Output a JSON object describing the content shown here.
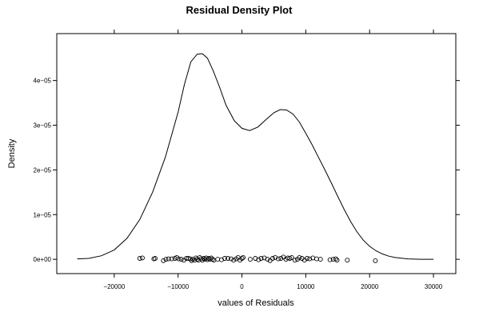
{
  "chart_data": {
    "type": "line",
    "title": "Residual Density Plot",
    "xlabel": "values of Residuals",
    "ylabel": "Density",
    "xlim": [
      -29000,
      33500
    ],
    "ylim": [
      -3.2e-06,
      5.05e-05
    ],
    "x_ticks": [
      {
        "value": -20000,
        "label": "−20000"
      },
      {
        "value": -10000,
        "label": "−10000"
      },
      {
        "value": 0,
        "label": "0"
      },
      {
        "value": 10000,
        "label": "10000"
      },
      {
        "value": 20000,
        "label": "20000"
      },
      {
        "value": 30000,
        "label": "30000"
      }
    ],
    "y_ticks": [
      {
        "value": 0,
        "label": "0e+00"
      },
      {
        "value": 1e-05,
        "label": "1e−05"
      },
      {
        "value": 2e-05,
        "label": "2e−05"
      },
      {
        "value": 3e-05,
        "label": "3e−05"
      },
      {
        "value": 4e-05,
        "label": "4e−05"
      }
    ],
    "grid": false,
    "series": [
      {
        "values": [
          [
            -25800,
            1e-07
          ],
          [
            -24000,
            2e-07
          ],
          [
            -22000,
            8e-07
          ],
          [
            -20000,
            2.1e-06
          ],
          [
            -18000,
            4.7e-06
          ],
          [
            -16000,
            8.9e-06
          ],
          [
            -14000,
            1.5e-05
          ],
          [
            -12000,
            2.28e-05
          ],
          [
            -10000,
            3.29e-05
          ],
          [
            -9000,
            3.92e-05
          ],
          [
            -8000,
            4.42e-05
          ],
          [
            -7000,
            4.59e-05
          ],
          [
            -6200,
            4.6e-05
          ],
          [
            -5400,
            4.5e-05
          ],
          [
            -4500,
            4.22e-05
          ],
          [
            -3500,
            3.85e-05
          ],
          [
            -2500,
            3.45e-05
          ],
          [
            -1200,
            3.1e-05
          ],
          [
            0,
            2.93e-05
          ],
          [
            1200,
            2.88e-05
          ],
          [
            2500,
            2.96e-05
          ],
          [
            3800,
            3.13e-05
          ],
          [
            5000,
            3.28e-05
          ],
          [
            6000,
            3.35e-05
          ],
          [
            7000,
            3.34e-05
          ],
          [
            8000,
            3.25e-05
          ],
          [
            9000,
            3.07e-05
          ],
          [
            10000,
            2.82e-05
          ],
          [
            11000,
            2.56e-05
          ],
          [
            12000,
            2.28e-05
          ],
          [
            13000,
            2e-05
          ],
          [
            14000,
            1.71e-05
          ],
          [
            15000,
            1.41e-05
          ],
          [
            16000,
            1.12e-05
          ],
          [
            17000,
            8.5e-06
          ],
          [
            18000,
            6.2e-06
          ],
          [
            19000,
            4.3e-06
          ],
          [
            20000,
            2.9e-06
          ],
          [
            21000,
            1.9e-06
          ],
          [
            22000,
            1.2e-06
          ],
          [
            23000,
            7e-07
          ],
          [
            24000,
            4e-07
          ],
          [
            26000,
            1e-07
          ],
          [
            28000,
            0.0
          ],
          [
            30000,
            0.0
          ]
        ]
      }
    ],
    "rug": [
      [
        -16000,
        2e-07
      ],
      [
        -15600,
        3e-07
      ],
      [
        -13800,
        1e-07
      ],
      [
        -13600,
        2e-07
      ],
      [
        -12300,
        -3e-07
      ],
      [
        -11900,
        0.0
      ],
      [
        -11500,
        1e-07
      ],
      [
        -11000,
        1e-07
      ],
      [
        -10500,
        2e-07
      ],
      [
        -10200,
        4e-07
      ],
      [
        -9900,
        1e-07
      ],
      [
        -9500,
        0.0
      ],
      [
        -9100,
        -2e-07
      ],
      [
        -8700,
        2e-07
      ],
      [
        -8400,
        2e-07
      ],
      [
        -8100,
        1e-07
      ],
      [
        -7900,
        -3e-07
      ],
      [
        -7700,
        0.0
      ],
      [
        -7400,
        -2e-07
      ],
      [
        -7200,
        3e-07
      ],
      [
        -7000,
        0.0
      ],
      [
        -6800,
        -2e-07
      ],
      [
        -6600,
        4e-07
      ],
      [
        -6400,
        1e-07
      ],
      [
        -6200,
        -2e-07
      ],
      [
        -6000,
        2e-07
      ],
      [
        -5800,
        0.0
      ],
      [
        -5600,
        3e-07
      ],
      [
        -5400,
        -1e-07
      ],
      [
        -5200,
        2e-07
      ],
      [
        -5000,
        0.0
      ],
      [
        -4800,
        3e-07
      ],
      [
        -4600,
        0.0
      ],
      [
        -4400,
        -2e-07
      ],
      [
        -3800,
        0.0
      ],
      [
        -3200,
        -1e-07
      ],
      [
        -2700,
        2e-07
      ],
      [
        -2200,
        2e-07
      ],
      [
        -1700,
        1e-07
      ],
      [
        -1300,
        -2e-07
      ],
      [
        -900,
        1e-07
      ],
      [
        -600,
        4e-07
      ],
      [
        -300,
        -2e-07
      ],
      [
        0,
        2e-07
      ],
      [
        200,
        4e-07
      ],
      [
        1300,
        0.0
      ],
      [
        2100,
        2e-07
      ],
      [
        2600,
        -1e-07
      ],
      [
        3000,
        2e-07
      ],
      [
        3500,
        3e-07
      ],
      [
        4000,
        0.0
      ],
      [
        4400,
        -3e-07
      ],
      [
        4800,
        2e-07
      ],
      [
        5200,
        4e-07
      ],
      [
        5700,
        1e-07
      ],
      [
        6100,
        2e-07
      ],
      [
        6500,
        5e-07
      ],
      [
        6900,
        0.0
      ],
      [
        7200,
        3e-07
      ],
      [
        7500,
        2e-07
      ],
      [
        7800,
        4e-07
      ],
      [
        8300,
        -2e-07
      ],
      [
        8700,
        0.0
      ],
      [
        9000,
        4e-07
      ],
      [
        9400,
        2e-07
      ],
      [
        9800,
        -2e-07
      ],
      [
        10200,
        2e-07
      ],
      [
        10600,
        1e-07
      ],
      [
        11100,
        3e-07
      ],
      [
        11700,
        1e-07
      ],
      [
        12300,
        0.0
      ],
      [
        13800,
        -1e-07
      ],
      [
        14300,
        0.0
      ],
      [
        14700,
        1e-07
      ],
      [
        14900,
        -2e-07
      ],
      [
        16500,
        -2e-07
      ],
      [
        20900,
        -3e-07
      ]
    ]
  }
}
